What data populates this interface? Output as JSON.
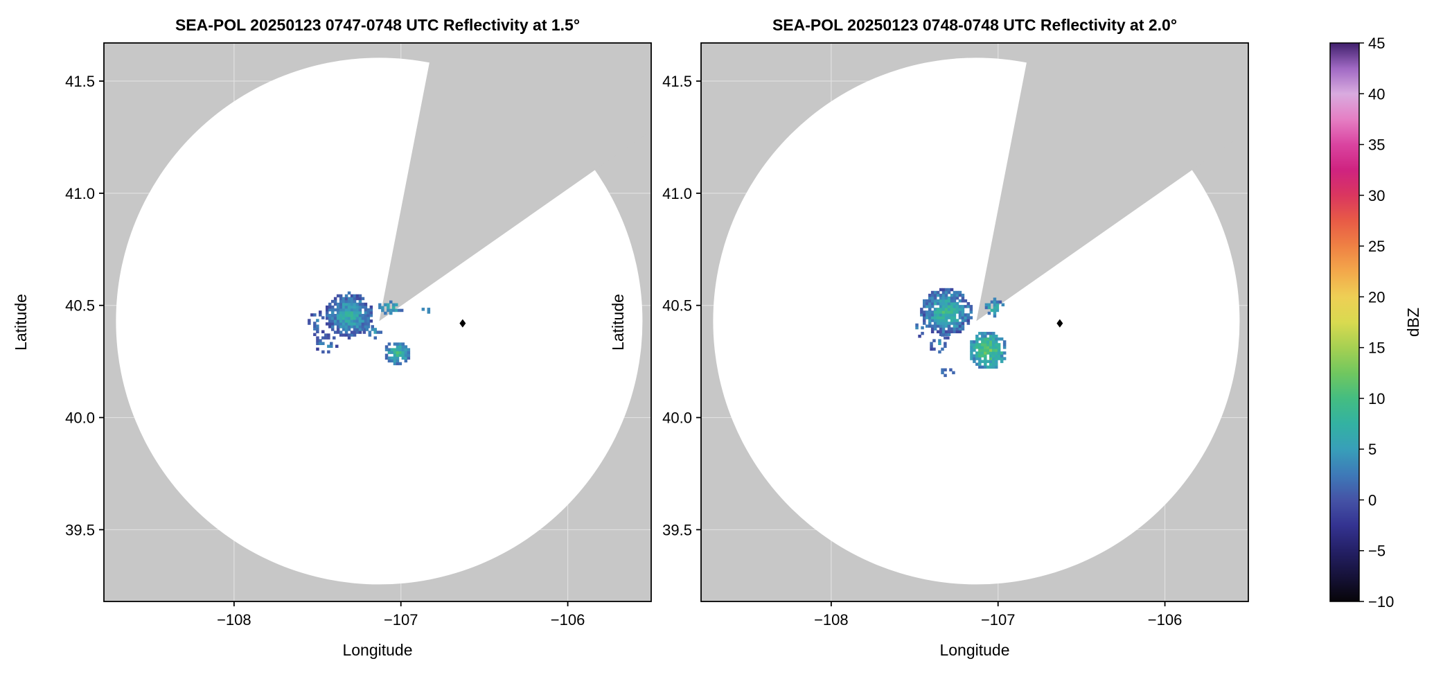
{
  "style": {
    "figure_bg": "#ffffff",
    "panel_bg": "#c7c7c7",
    "coverage_fill": "#ffffff",
    "grid_line": "#ffffff",
    "axis_color": "#000000",
    "marker_color": "#000000",
    "text_color": "#000000"
  },
  "chart_data": {
    "type": "heatmap",
    "description": "Dual-panel SEA-POL radar PPI reflectivity scan with shared dBZ colorbar; white disk is radar coverage area, gray wedge is blocked sector, colored pixels are reflectivity echoes",
    "panels": [
      {
        "title": "SEA-POL 20250123 0747-0748 UTC Reflectivity at 1.5°",
        "xlabel": "Longitude",
        "ylabel": "Latitude",
        "xlim": [
          -108.78,
          -105.5
        ],
        "ylim": [
          39.18,
          41.67
        ],
        "xticks": [
          -108,
          -107,
          -106
        ],
        "xtick_labels": [
          "−108",
          "−107",
          "−106"
        ],
        "yticks": [
          41.5,
          41.0,
          40.5,
          40.0,
          39.5
        ],
        "ytick_labels": [
          "41.5",
          "41.0",
          "40.5",
          "40.0",
          "39.5"
        ],
        "radar": {
          "lon": -107.13,
          "lat": 40.43,
          "radius_deg_lat": 1.174,
          "wedge_azimuth_deg": [
            11,
            55
          ]
        },
        "marker": {
          "lon": -106.63,
          "lat": 40.42
        },
        "echoes": [
          {
            "cx": -107.31,
            "cy": 40.455,
            "rx": 0.145,
            "ry": 0.1,
            "density": 1.0,
            "vmin": -1,
            "vmax": 9,
            "seed": 7
          },
          {
            "cx": -107.5,
            "cy": 40.42,
            "rx": 0.055,
            "ry": 0.055,
            "density": 0.35,
            "vmin": -2,
            "vmax": 5,
            "seed": 11
          },
          {
            "cx": -107.45,
            "cy": 40.33,
            "rx": 0.085,
            "ry": 0.04,
            "density": 0.35,
            "vmin": -2,
            "vmax": 6,
            "seed": 12
          },
          {
            "cx": -107.06,
            "cy": 40.49,
            "rx": 0.075,
            "ry": 0.032,
            "density": 0.6,
            "vmin": 1,
            "vmax": 9,
            "seed": 13
          },
          {
            "cx": -107.02,
            "cy": 40.29,
            "rx": 0.075,
            "ry": 0.055,
            "density": 0.85,
            "vmin": 1,
            "vmax": 11,
            "seed": 17
          },
          {
            "cx": -106.85,
            "cy": 40.47,
            "rx": 0.028,
            "ry": 0.016,
            "density": 0.6,
            "vmin": 2,
            "vmax": 7,
            "seed": 19
          },
          {
            "cx": -107.17,
            "cy": 40.38,
            "rx": 0.05,
            "ry": 0.03,
            "density": 0.4,
            "vmin": 0,
            "vmax": 7,
            "seed": 21
          }
        ]
      },
      {
        "title": "SEA-POL 20250123 0748-0748 UTC Reflectivity at 2.0°",
        "xlabel": "Longitude",
        "ylabel": "Latitude",
        "xlim": [
          -108.78,
          -105.5
        ],
        "ylim": [
          39.18,
          41.67
        ],
        "xticks": [
          -108,
          -107,
          -106
        ],
        "xtick_labels": [
          "−108",
          "−107",
          "−106"
        ],
        "yticks": [
          41.5,
          41.0,
          40.5,
          40.0,
          39.5
        ],
        "ytick_labels": [
          "41.5",
          "41.0",
          "40.5",
          "40.0",
          "39.5"
        ],
        "radar": {
          "lon": -107.13,
          "lat": 40.43,
          "radius_deg_lat": 1.174,
          "wedge_azimuth_deg": [
            11,
            55
          ]
        },
        "marker": {
          "lon": -106.63,
          "lat": 40.42
        },
        "echoes": [
          {
            "cx": -107.31,
            "cy": 40.47,
            "rx": 0.155,
            "ry": 0.105,
            "density": 1.0,
            "vmin": -1,
            "vmax": 11,
            "seed": 23
          },
          {
            "cx": -107.02,
            "cy": 40.49,
            "rx": 0.065,
            "ry": 0.038,
            "density": 0.7,
            "vmin": 0,
            "vmax": 10,
            "seed": 29
          },
          {
            "cx": -107.06,
            "cy": 40.3,
            "rx": 0.115,
            "ry": 0.085,
            "density": 0.95,
            "vmin": 2,
            "vmax": 14,
            "seed": 31
          },
          {
            "cx": -107.35,
            "cy": 40.33,
            "rx": 0.06,
            "ry": 0.045,
            "density": 0.4,
            "vmin": -1,
            "vmax": 6,
            "seed": 37
          },
          {
            "cx": -107.3,
            "cy": 40.2,
            "rx": 0.05,
            "ry": 0.025,
            "density": 0.35,
            "vmin": 0,
            "vmax": 5,
            "seed": 41
          },
          {
            "cx": -107.47,
            "cy": 40.4,
            "rx": 0.05,
            "ry": 0.04,
            "density": 0.3,
            "vmin": -1,
            "vmax": 5,
            "seed": 43
          }
        ]
      }
    ],
    "colorbar": {
      "label": "dBZ",
      "vmin": -10,
      "vmax": 45,
      "ticks": [
        45,
        40,
        35,
        30,
        25,
        20,
        15,
        10,
        5,
        0,
        -5,
        -10
      ],
      "tick_labels": [
        "45",
        "40",
        "35",
        "30",
        "25",
        "20",
        "15",
        "10",
        "5",
        "0",
        "−5",
        "−10"
      ],
      "stops": [
        [
          -10,
          "#070509"
        ],
        [
          -7.5,
          "#161239"
        ],
        [
          -5,
          "#242066"
        ],
        [
          -2.5,
          "#343391"
        ],
        [
          0,
          "#4553a6"
        ],
        [
          2.5,
          "#3e7ab8"
        ],
        [
          5,
          "#389fb9"
        ],
        [
          7.5,
          "#33b2a2"
        ],
        [
          10,
          "#44bd81"
        ],
        [
          12.5,
          "#71c75f"
        ],
        [
          15,
          "#a6d052"
        ],
        [
          17.5,
          "#d9da50"
        ],
        [
          20,
          "#eecf55"
        ],
        [
          22.5,
          "#f3a84b"
        ],
        [
          25,
          "#ef8144"
        ],
        [
          27.5,
          "#e85b46"
        ],
        [
          30,
          "#da365f"
        ],
        [
          32.5,
          "#cf2380"
        ],
        [
          35,
          "#da44a0"
        ],
        [
          37.5,
          "#e57fc4"
        ],
        [
          40,
          "#d9abdf"
        ],
        [
          42.5,
          "#a069c4"
        ],
        [
          45,
          "#40206c"
        ]
      ]
    }
  }
}
